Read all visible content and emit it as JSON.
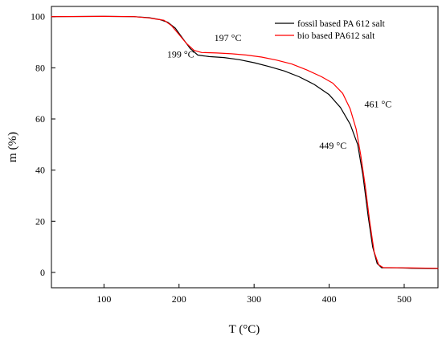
{
  "chart_data": {
    "type": "line",
    "xlabel": "T (°C)",
    "ylabel": "m (%)",
    "xlim": [
      30,
      545
    ],
    "ylim": [
      -6,
      104
    ],
    "x_ticks": [
      100,
      200,
      300,
      400,
      500
    ],
    "y_ticks": [
      0,
      20,
      40,
      60,
      80,
      100
    ],
    "x_tick_labels": [
      "100",
      "200",
      "300",
      "400",
      "500"
    ],
    "y_tick_labels": [
      "0",
      "20",
      "40",
      "60",
      "80",
      "100"
    ],
    "grid": false,
    "legend_position": "top-right",
    "series": [
      {
        "name": "fossil based PA 612 salt",
        "color": "#000000",
        "points": [
          [
            30,
            100
          ],
          [
            100,
            100.1
          ],
          [
            140,
            100
          ],
          [
            160,
            99.6
          ],
          [
            175,
            98.8
          ],
          [
            185,
            97.8
          ],
          [
            195,
            95.5
          ],
          [
            205,
            91.5
          ],
          [
            215,
            87.5
          ],
          [
            225,
            85.0
          ],
          [
            240,
            84.4
          ],
          [
            260,
            84.0
          ],
          [
            280,
            83.2
          ],
          [
            300,
            82.0
          ],
          [
            320,
            80.5
          ],
          [
            340,
            78.8
          ],
          [
            360,
            76.5
          ],
          [
            380,
            73.5
          ],
          [
            400,
            69.5
          ],
          [
            415,
            64.5
          ],
          [
            428,
            58.0
          ],
          [
            438,
            50.0
          ],
          [
            445,
            38.0
          ],
          [
            452,
            22.0
          ],
          [
            458,
            10.0
          ],
          [
            464,
            3.5
          ],
          [
            470,
            1.8
          ],
          [
            490,
            1.8
          ],
          [
            510,
            1.6
          ],
          [
            545,
            1.5
          ]
        ]
      },
      {
        "name": "bio based PA612 salt",
        "color": "#ff0000",
        "points": [
          [
            30,
            100
          ],
          [
            100,
            100.1
          ],
          [
            140,
            100
          ],
          [
            160,
            99.5
          ],
          [
            170,
            99.0
          ],
          [
            180,
            98.6
          ],
          [
            190,
            96.5
          ],
          [
            200,
            93.0
          ],
          [
            210,
            89.5
          ],
          [
            220,
            86.8
          ],
          [
            230,
            86.0
          ],
          [
            250,
            85.8
          ],
          [
            270,
            85.5
          ],
          [
            290,
            85.0
          ],
          [
            310,
            84.2
          ],
          [
            330,
            83.0
          ],
          [
            350,
            81.5
          ],
          [
            370,
            79.2
          ],
          [
            390,
            76.5
          ],
          [
            405,
            74.0
          ],
          [
            418,
            70.0
          ],
          [
            428,
            64.0
          ],
          [
            436,
            56.0
          ],
          [
            442,
            46.0
          ],
          [
            448,
            34.0
          ],
          [
            454,
            20.0
          ],
          [
            460,
            8.0
          ],
          [
            466,
            3.0
          ],
          [
            472,
            1.9
          ],
          [
            500,
            1.8
          ],
          [
            545,
            1.6
          ]
        ]
      }
    ],
    "annotations": [
      {
        "text": "199 °C",
        "x": 184,
        "y": 84
      },
      {
        "text": "197 °C",
        "x": 247,
        "y": 90.5
      },
      {
        "text": "461 °C",
        "x": 447,
        "y": 64.6
      },
      {
        "text": "449 °C",
        "x": 387,
        "y": 48.3
      }
    ]
  }
}
